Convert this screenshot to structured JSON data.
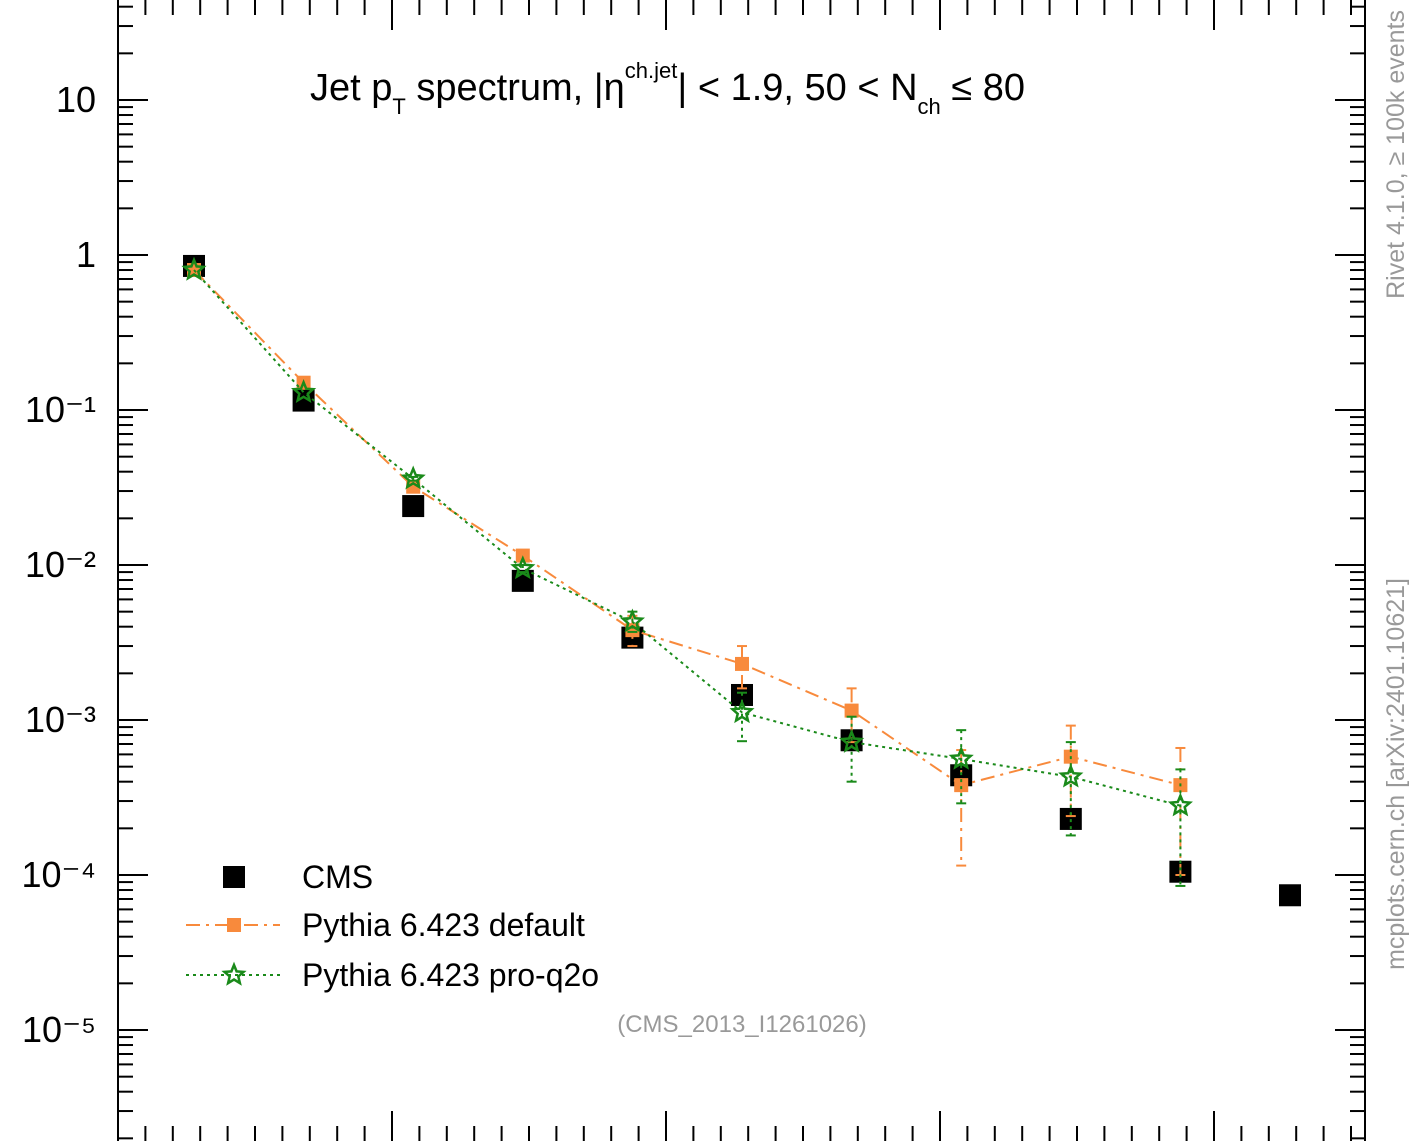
{
  "chart_data": {
    "type": "scatter",
    "title_parts": {
      "a": "Jet p",
      "a_sub": "T",
      "b": " spectrum, |η",
      "b_sup": "ch.jet",
      "c": "| < 1.9, 50 < N",
      "c_sub": "ch",
      "d": " ≤ 80"
    },
    "watermark": "(CMS_2013_I1261026)",
    "side_label_top": "Rivet 4.1.0, ≥ 100k events",
    "side_label_bottom": "mcplots.cern.ch [arXiv:2401.10621]",
    "y_scale": "log",
    "ylim": [
      2e-06,
      30
    ],
    "xlim": [
      0,
      46
    ],
    "y_tick_labels": [
      "10",
      "1",
      "10⁻¹",
      "10⁻²",
      "10⁻³",
      "10⁻⁴",
      "10⁻⁵"
    ],
    "y_tick_values": [
      10,
      1,
      0.1,
      0.01,
      0.001,
      0.0001,
      1e-05
    ],
    "legend_position": "bottom-left",
    "series": [
      {
        "name": "CMS",
        "color": "#000000",
        "marker": "square",
        "line": "none",
        "points": [
          {
            "x": 3,
            "y": 0.85
          },
          {
            "x": 7,
            "y": 0.115
          },
          {
            "x": 11,
            "y": 0.024
          },
          {
            "x": 15,
            "y": 0.0079
          },
          {
            "x": 19,
            "y": 0.0034
          },
          {
            "x": 23,
            "y": 0.00145
          },
          {
            "x": 27,
            "y": 0.00074
          },
          {
            "x": 31,
            "y": 0.00044
          },
          {
            "x": 35,
            "y": 0.00023
          },
          {
            "x": 39,
            "y": 0.000105
          },
          {
            "x": 43,
            "y": 7.4e-05
          }
        ]
      },
      {
        "name": "Pythia 6.423 default",
        "color": "#f88a3c",
        "marker": "square",
        "line": "dashdot",
        "points": [
          {
            "x": 3,
            "y": 0.8,
            "lo": 0.8,
            "hi": 0.8
          },
          {
            "x": 7,
            "y": 0.15,
            "lo": 0.15,
            "hi": 0.15
          },
          {
            "x": 11,
            "y": 0.032,
            "lo": 0.031,
            "hi": 0.033
          },
          {
            "x": 15,
            "y": 0.0115,
            "lo": 0.011,
            "hi": 0.012
          },
          {
            "x": 19,
            "y": 0.0038,
            "lo": 0.003,
            "hi": 0.0047
          },
          {
            "x": 23,
            "y": 0.0023,
            "lo": 0.0016,
            "hi": 0.003
          },
          {
            "x": 27,
            "y": 0.00115,
            "lo": 0.00072,
            "hi": 0.0016
          },
          {
            "x": 31,
            "y": 0.00038,
            "lo": 0.000115,
            "hi": 0.00064
          },
          {
            "x": 35,
            "y": 0.00058,
            "lo": 0.00024,
            "hi": 0.00092
          },
          {
            "x": 39,
            "y": 0.00038,
            "lo": 0.0001,
            "hi": 0.00066
          }
        ]
      },
      {
        "name": "Pythia 6.423 pro-q2o",
        "color": "#1a8a1a",
        "marker": "star",
        "line": "dotted",
        "points": [
          {
            "x": 3,
            "y": 0.8,
            "lo": 0.8,
            "hi": 0.8
          },
          {
            "x": 7,
            "y": 0.13,
            "lo": 0.13,
            "hi": 0.13
          },
          {
            "x": 11,
            "y": 0.036,
            "lo": 0.035,
            "hi": 0.037
          },
          {
            "x": 15,
            "y": 0.0095,
            "lo": 0.009,
            "hi": 0.01
          },
          {
            "x": 19,
            "y": 0.0043,
            "lo": 0.0037,
            "hi": 0.005
          },
          {
            "x": 23,
            "y": 0.00112,
            "lo": 0.00073,
            "hi": 0.0015
          },
          {
            "x": 27,
            "y": 0.00072,
            "lo": 0.0004,
            "hi": 0.00105
          },
          {
            "x": 31,
            "y": 0.00056,
            "lo": 0.00029,
            "hi": 0.00086
          },
          {
            "x": 35,
            "y": 0.00043,
            "lo": 0.00018,
            "hi": 0.00072
          },
          {
            "x": 39,
            "y": 0.00028,
            "lo": 8.5e-05,
            "hi": 0.00048
          }
        ]
      }
    ]
  }
}
